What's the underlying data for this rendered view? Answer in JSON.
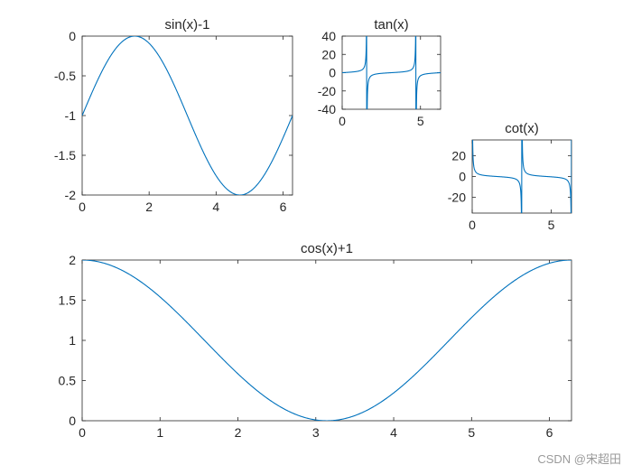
{
  "watermark": "CSDN @宋超田",
  "colors": {
    "line": "#0072BD",
    "axis": "#262626",
    "text": "#262626",
    "background": "#ffffff"
  },
  "chart_data": [
    {
      "id": "sin",
      "type": "line",
      "title": "sin(x)-1",
      "func": "sin(x)-1",
      "xlabel": "",
      "ylabel": "",
      "xlim": [
        0,
        6.2832
      ],
      "ylim": [
        -2,
        0
      ],
      "xticks": [
        0,
        2,
        4,
        6
      ],
      "xticklabels": [
        "0",
        "2",
        "4",
        "6"
      ],
      "yticks": [
        0,
        -0.5,
        -1,
        -1.5,
        -2
      ],
      "yticklabels": [
        "0",
        "-0.5",
        "-1",
        "-1.5",
        "-2"
      ],
      "grid": false,
      "legend": "none",
      "series": [
        {
          "x": [
            0,
            0.39,
            0.79,
            1.18,
            1.57,
            1.96,
            2.36,
            2.75,
            3.14,
            3.53,
            3.93,
            4.32,
            4.71,
            5.11,
            5.5,
            5.89,
            6.28
          ],
          "values": [
            -1,
            -0.62,
            -0.29,
            -0.08,
            0,
            -0.08,
            -0.29,
            -0.62,
            -1,
            -1.38,
            -1.71,
            -1.92,
            -2,
            -1.92,
            -1.71,
            -1.38,
            -1
          ]
        }
      ]
    },
    {
      "id": "tan",
      "type": "line",
      "title": "tan(x)",
      "func": "tan(x)",
      "xlabel": "",
      "ylabel": "",
      "xlim": [
        0,
        6.2832
      ],
      "ylim": [
        -40,
        40
      ],
      "xticks": [
        0,
        5
      ],
      "xticklabels": [
        "0",
        "5"
      ],
      "yticks": [
        40,
        20,
        0,
        -20,
        -40
      ],
      "yticklabels": [
        "40",
        "20",
        "0",
        "-20",
        "-40"
      ],
      "grid": false,
      "legend": "none",
      "series": [
        {
          "x": [
            0,
            0.8,
            1.2,
            1.45,
            1.5,
            1.64,
            1.7,
            2.0,
            2.5,
            3.14,
            3.9,
            4.4,
            4.6,
            4.65,
            4.78,
            4.85,
            5.2,
            5.6,
            6.28
          ],
          "values": [
            0,
            1.03,
            2.57,
            8.24,
            14.1,
            -14.5,
            -7.7,
            -2.19,
            -0.75,
            0,
            0.99,
            3.1,
            8.86,
            16.4,
            -14.3,
            -7.0,
            -1.89,
            -0.78,
            0
          ]
        }
      ]
    },
    {
      "id": "cot",
      "type": "line",
      "title": "cot(x)",
      "func": "cot(x)",
      "xlabel": "",
      "ylabel": "",
      "xlim": [
        0,
        6.2832
      ],
      "ylim": [
        -35,
        35
      ],
      "xticks": [
        0,
        5
      ],
      "xticklabels": [
        "0",
        "5"
      ],
      "yticks": [
        20,
        0,
        -20
      ],
      "yticklabels": [
        "20",
        "0",
        "-20"
      ],
      "grid": false,
      "legend": "none",
      "series": [
        {
          "x": [
            0.03,
            0.1,
            0.5,
            1.0,
            1.57,
            2.1,
            2.6,
            3.0,
            3.08,
            3.2,
            3.3,
            3.6,
            4.2,
            4.71,
            5.3,
            5.8,
            6.1,
            6.25
          ],
          "values": [
            33.3,
            9.97,
            1.83,
            0.64,
            0,
            -0.58,
            -1.67,
            -7.02,
            -16.2,
            17.1,
            6.2,
            1.85,
            0.56,
            0,
            -0.55,
            -1.99,
            -5.3,
            -29.8
          ]
        }
      ]
    },
    {
      "id": "cos",
      "type": "line",
      "title": "cos(x)+1",
      "func": "cos(x)+1",
      "xlabel": "",
      "ylabel": "",
      "xlim": [
        0,
        6.2832
      ],
      "ylim": [
        0,
        2
      ],
      "xticks": [
        0,
        1,
        2,
        3,
        4,
        5,
        6
      ],
      "xticklabels": [
        "0",
        "1",
        "2",
        "3",
        "4",
        "5",
        "6"
      ],
      "yticks": [
        2,
        1.5,
        1,
        0.5,
        0
      ],
      "yticklabels": [
        "2",
        "1.5",
        "1",
        "0.5",
        "0"
      ],
      "grid": false,
      "legend": "none",
      "series": [
        {
          "x": [
            0,
            0.39,
            0.79,
            1.18,
            1.57,
            1.96,
            2.36,
            2.75,
            3.14,
            3.53,
            3.93,
            4.32,
            4.71,
            5.11,
            5.5,
            5.89,
            6.28
          ],
          "values": [
            2,
            1.92,
            1.71,
            1.38,
            1,
            0.62,
            0.29,
            0.08,
            0,
            0.08,
            0.29,
            0.62,
            1,
            1.38,
            1.71,
            1.92,
            2
          ]
        }
      ]
    }
  ]
}
